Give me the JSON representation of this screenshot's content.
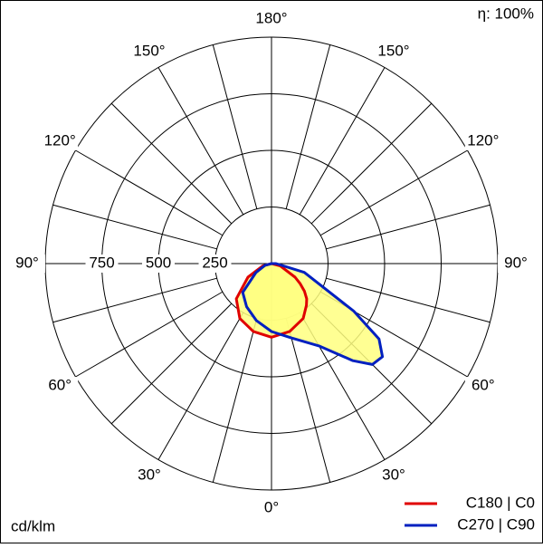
{
  "chart_data": {
    "type": "polar",
    "efficiency_label": "η: 100%",
    "unit_label": "cd/klm",
    "angles": [
      -90,
      -75,
      -60,
      -45,
      -30,
      -15,
      0,
      15,
      30,
      40,
      45,
      50,
      55,
      60,
      75,
      90
    ],
    "series": [
      {
        "name": "C180 | C0",
        "color": "#e00000",
        "values": [
          0,
          40,
          120,
          220,
          280,
          310,
          325,
          310,
          280,
          240,
          220,
          190,
          155,
          120,
          40,
          0
        ]
      },
      {
        "name": "C270 | C90",
        "color": "#0020c0",
        "values": [
          0,
          30,
          80,
          180,
          220,
          260,
          300,
          340,
          420,
          560,
          630,
          640,
          580,
          420,
          150,
          20
        ]
      }
    ],
    "fill_color": "#ffff80",
    "rlim": [
      0,
      1000
    ],
    "rticks": [
      250,
      500,
      750
    ],
    "angle_ticks": [
      {
        "value": 0,
        "label": "0°"
      },
      {
        "value": 30,
        "label": "30°"
      },
      {
        "value": 60,
        "label": "60°"
      },
      {
        "value": 90,
        "label": "90°"
      },
      {
        "value": 120,
        "label": "120°"
      },
      {
        "value": 150,
        "label": "150°"
      },
      {
        "value": 180,
        "label": "180°"
      }
    ]
  }
}
